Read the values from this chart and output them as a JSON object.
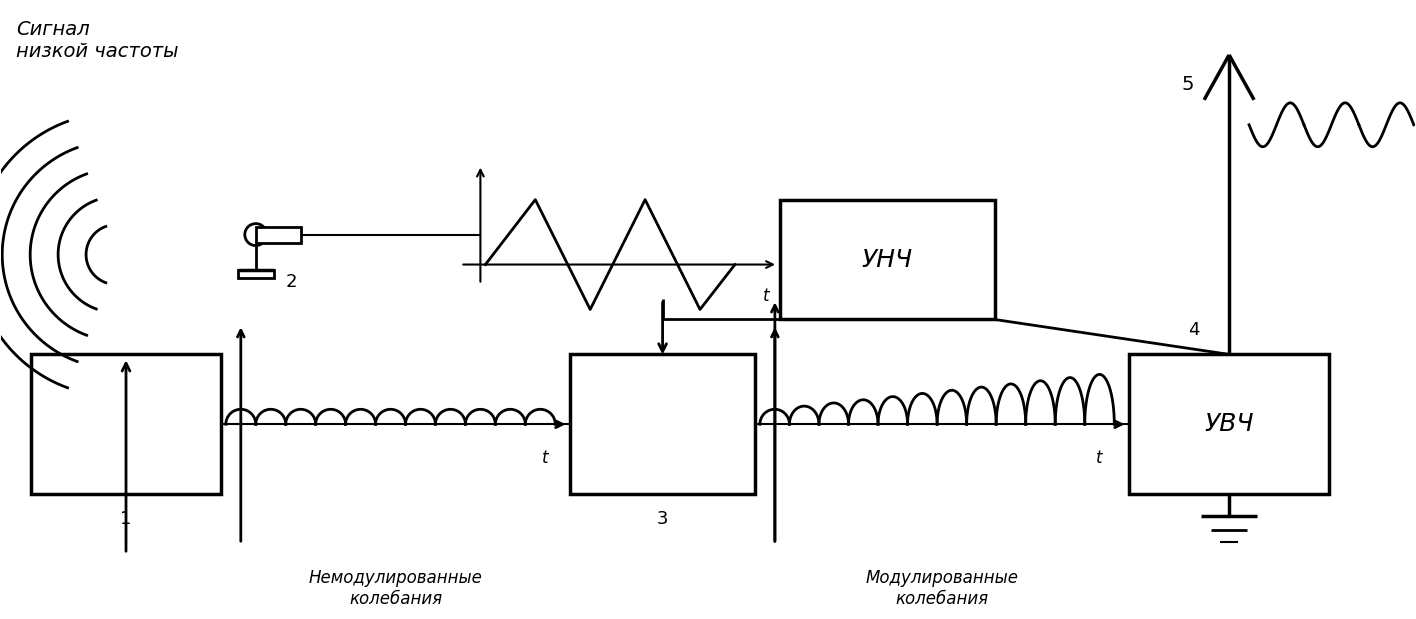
{
  "bg_color": "#ffffff",
  "line_color": "#000000",
  "label_sygnal": "Сигнал\nнизкой частоты",
  "label_1": "1",
  "label_2": "2",
  "label_3": "3",
  "label_4": "4",
  "label_5": "5",
  "label_unch": "УНЧ",
  "label_uvch": "УВЧ",
  "label_nemodul": "Немодулированные\nколебания",
  "label_modul": "Модулированные\nколебания",
  "fig_width": 14.16,
  "fig_height": 6.19
}
